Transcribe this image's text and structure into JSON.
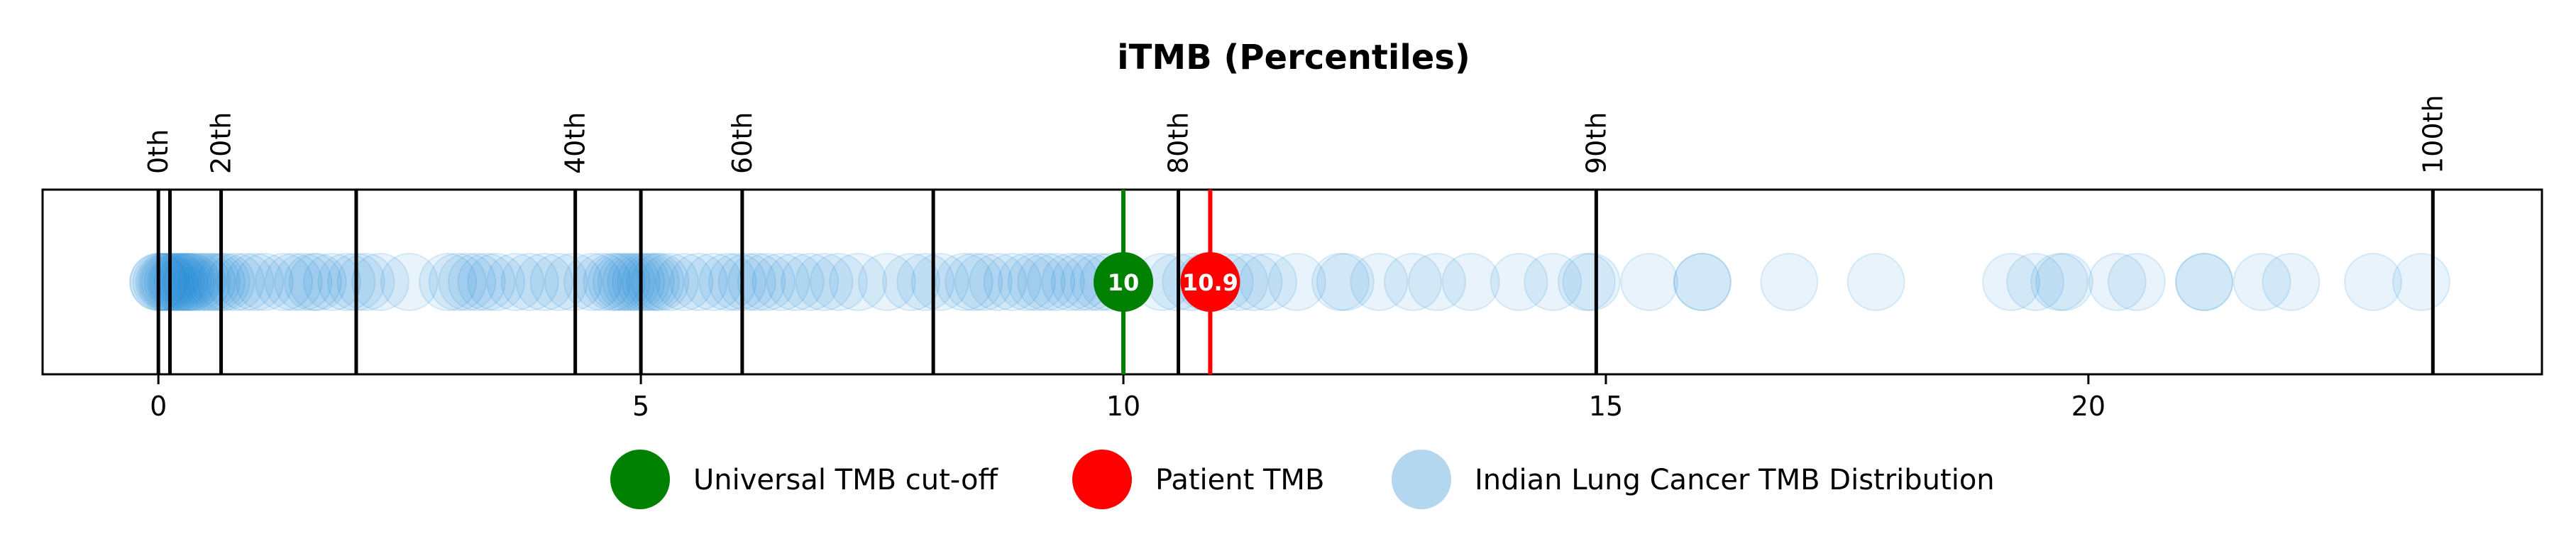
{
  "chart_data": {
    "type": "scatter",
    "title": "iTMB (Percentiles)",
    "xlim": [
      -1.2,
      24.7
    ],
    "xticks": [
      0,
      5,
      10,
      15,
      20
    ],
    "xtick_labels": [
      "0",
      "5",
      "10",
      "15",
      "20"
    ],
    "percentiles": [
      {
        "label": "0th",
        "x": 0.0,
        "labeled": true
      },
      {
        "label": "",
        "x": 0.12,
        "labeled": false
      },
      {
        "label": "20th",
        "x": 0.65,
        "labeled": true
      },
      {
        "label": "",
        "x": 2.05,
        "labeled": false
      },
      {
        "label": "40th",
        "x": 4.32,
        "labeled": true
      },
      {
        "label": "",
        "x": 5.0,
        "labeled": false
      },
      {
        "label": "60th",
        "x": 6.05,
        "labeled": true
      },
      {
        "label": "",
        "x": 8.03,
        "labeled": false
      },
      {
        "label": "80th",
        "x": 10.57,
        "labeled": true
      },
      {
        "label": "90th",
        "x": 14.9,
        "labeled": true
      },
      {
        "label": "100th",
        "x": 23.57,
        "labeled": true
      }
    ],
    "cutoff": {
      "name": "Universal TMB cut-off",
      "value": 10,
      "label": "10",
      "color": "#008000"
    },
    "patient": {
      "name": "Patient TMB",
      "value": 10.9,
      "label": "10.9",
      "color": "#ff0000"
    },
    "distribution": {
      "name": "Indian Lung Cancer TMB Distribution",
      "color": "#1f8dd6",
      "legend_color": "#b3d7ef",
      "values": [
        0.0,
        0.0,
        0.03,
        0.06,
        0.08,
        0.1,
        0.12,
        0.15,
        0.18,
        0.2,
        0.22,
        0.25,
        0.28,
        0.3,
        0.33,
        0.35,
        0.4,
        0.45,
        0.5,
        0.55,
        0.6,
        0.65,
        0.7,
        0.8,
        0.9,
        1.0,
        1.1,
        1.3,
        1.4,
        1.5,
        1.6,
        1.65,
        1.8,
        1.95,
        2.05,
        2.15,
        2.3,
        2.6,
        3.0,
        3.1,
        3.2,
        3.3,
        3.4,
        3.5,
        3.7,
        3.85,
        4.0,
        4.15,
        4.3,
        4.5,
        4.6,
        4.7,
        4.75,
        4.8,
        4.85,
        4.9,
        4.95,
        5.0,
        5.05,
        5.1,
        5.15,
        5.2,
        5.3,
        5.45,
        5.6,
        5.75,
        5.9,
        6.0,
        6.1,
        6.2,
        6.3,
        6.45,
        6.6,
        6.75,
        6.9,
        7.05,
        7.25,
        7.55,
        7.8,
        7.95,
        8.1,
        8.35,
        8.45,
        8.55,
        8.7,
        8.85,
        9.0,
        9.1,
        9.2,
        9.3,
        9.45,
        9.55,
        9.65,
        9.75,
        9.85,
        10.4,
        10.55,
        10.7,
        10.85,
        11.05,
        11.2,
        11.35,
        11.5,
        11.8,
        12.25,
        12.3,
        12.65,
        13.0,
        13.25,
        13.6,
        14.1,
        14.45,
        14.8,
        14.85,
        15.45,
        16.0,
        16.0,
        16.9,
        17.8,
        19.2,
        19.45,
        19.7,
        19.75,
        20.3,
        20.5,
        21.2,
        21.2,
        21.8,
        22.1,
        22.95,
        23.45
      ]
    },
    "legend": {
      "placement": "bottom-center",
      "entries": [
        {
          "label": "Universal TMB cut-off",
          "color": "#008000"
        },
        {
          "label": "Patient TMB",
          "color": "#ff0000"
        },
        {
          "label": "Indian Lung Cancer TMB Distribution",
          "color": "#b3d7ef"
        }
      ]
    },
    "grid": false
  }
}
